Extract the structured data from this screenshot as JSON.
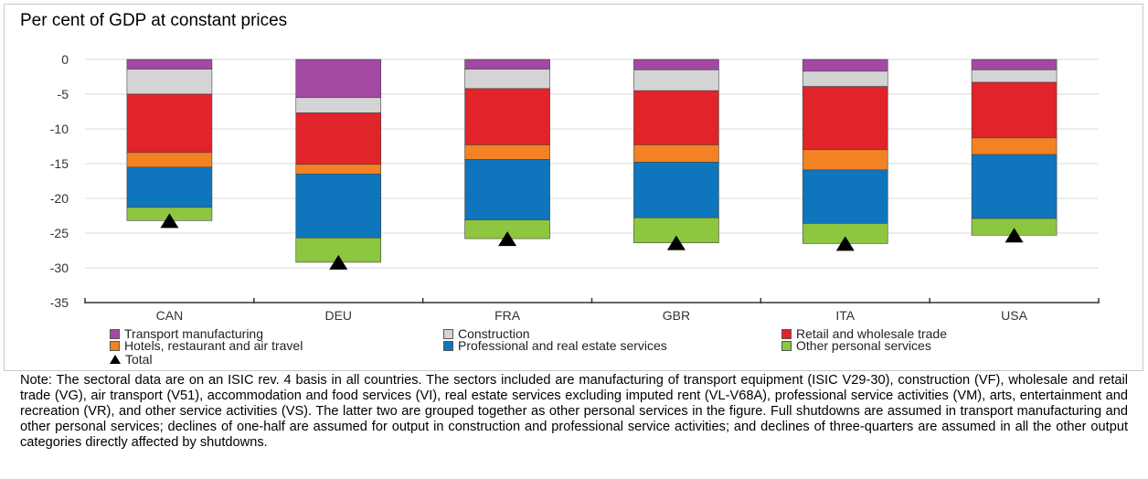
{
  "title": "Per cent of GDP at constant prices",
  "note": "Note: The sectoral data are on an ISIC rev. 4 basis in all countries. The sectors included are manufacturing of transport equipment (ISIC V29-30), construction (VF), wholesale and retail trade (VG), air transport (V51), accommodation and food services (VI), real estate services excluding imputed rent (VL-V68A), professional service activities (VM), arts, entertainment and recreation (VR), and other service activities (VS). The latter two are grouped together as other personal services in the figure. Full shutdowns are assumed in transport manufacturing and other personal services; declines of one-half are assumed for output in construction and professional service activities; and declines of three-quarters are assumed in all the other output categories directly affected by shutdowns.",
  "chart_data": {
    "type": "bar",
    "stacked": true,
    "title": "Per cent of GDP at constant prices",
    "xlabel": "",
    "ylabel": "",
    "ylim": [
      -35,
      0
    ],
    "yticks": [
      0,
      -5,
      -10,
      -15,
      -20,
      -25,
      -30,
      -35
    ],
    "grid": true,
    "legend_position": "bottom",
    "categories": [
      "CAN",
      "DEU",
      "FRA",
      "GBR",
      "ITA",
      "USA"
    ],
    "series": [
      {
        "name": "Transport manufacturing",
        "color": "#a349a4",
        "values": [
          -1.4,
          -5.5,
          -1.4,
          -1.5,
          -1.7,
          -1.5
        ]
      },
      {
        "name": "Construction",
        "color": "#d4d4d4",
        "values": [
          -3.6,
          -2.2,
          -2.8,
          -3.0,
          -2.2,
          -1.8
        ]
      },
      {
        "name": "Retail and wholesale trade",
        "color": "#e0242a",
        "values": [
          -8.4,
          -7.4,
          -8.1,
          -7.8,
          -9.1,
          -8.0
        ]
      },
      {
        "name": "Hotels, restaurant and air travel",
        "color": "#f28224",
        "values": [
          -2.1,
          -1.4,
          -2.1,
          -2.5,
          -2.9,
          -2.4
        ]
      },
      {
        "name": "Professional and real estate services",
        "color": "#0f75bc",
        "values": [
          -5.8,
          -9.2,
          -8.7,
          -8.0,
          -7.7,
          -9.2
        ]
      },
      {
        "name": "Other personal services",
        "color": "#8dc63f",
        "values": [
          -1.9,
          -3.5,
          -2.7,
          -3.6,
          -2.9,
          -2.4
        ]
      }
    ],
    "total": {
      "name": "Total",
      "values": [
        -23.2,
        -29.2,
        -25.8,
        -26.4,
        -26.5,
        -25.3
      ]
    }
  }
}
